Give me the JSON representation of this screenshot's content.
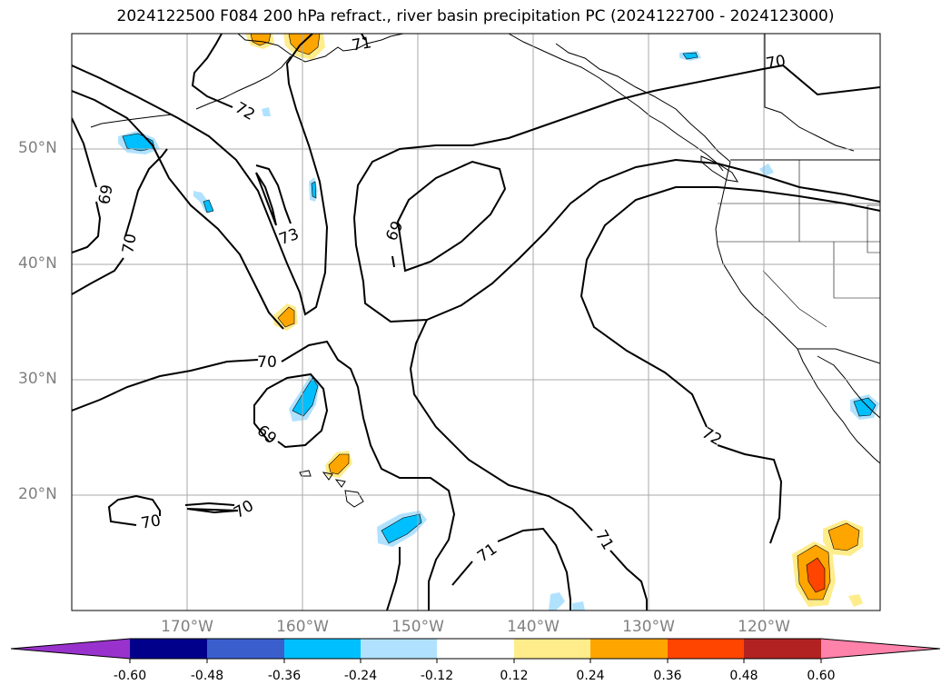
{
  "title": "2024122500 F084 200 hPa refract., river basin precipitation PC (2024122700 - 2024123000)",
  "map": {
    "lat_ticks": [
      "50°N",
      "40°N",
      "30°N",
      "20°N"
    ],
    "lon_ticks": [
      "170°W",
      "160°W",
      "150°W",
      "140°W",
      "130°W",
      "120°W"
    ],
    "contour_labels": [
      "71",
      "70",
      "72",
      "69",
      "70",
      "73",
      "69",
      "70",
      "69",
      "70",
      "70",
      "71",
      "71",
      "72"
    ],
    "contour_color": "#000000",
    "grid_color": "#aaaaaa"
  },
  "colorbar": {
    "tick_labels": [
      "-0.60",
      "-0.48",
      "-0.36",
      "-0.24",
      "-0.12",
      "0.12",
      "0.24",
      "0.36",
      "0.48",
      "0.60"
    ],
    "colors": [
      "#9932cc",
      "#00008b",
      "#3a5fcd",
      "#00bfff",
      "#b0e2ff",
      "#ffffff",
      "#ffec8b",
      "#ffa500",
      "#ff4500",
      "#b22222",
      "#ff82ab"
    ]
  }
}
